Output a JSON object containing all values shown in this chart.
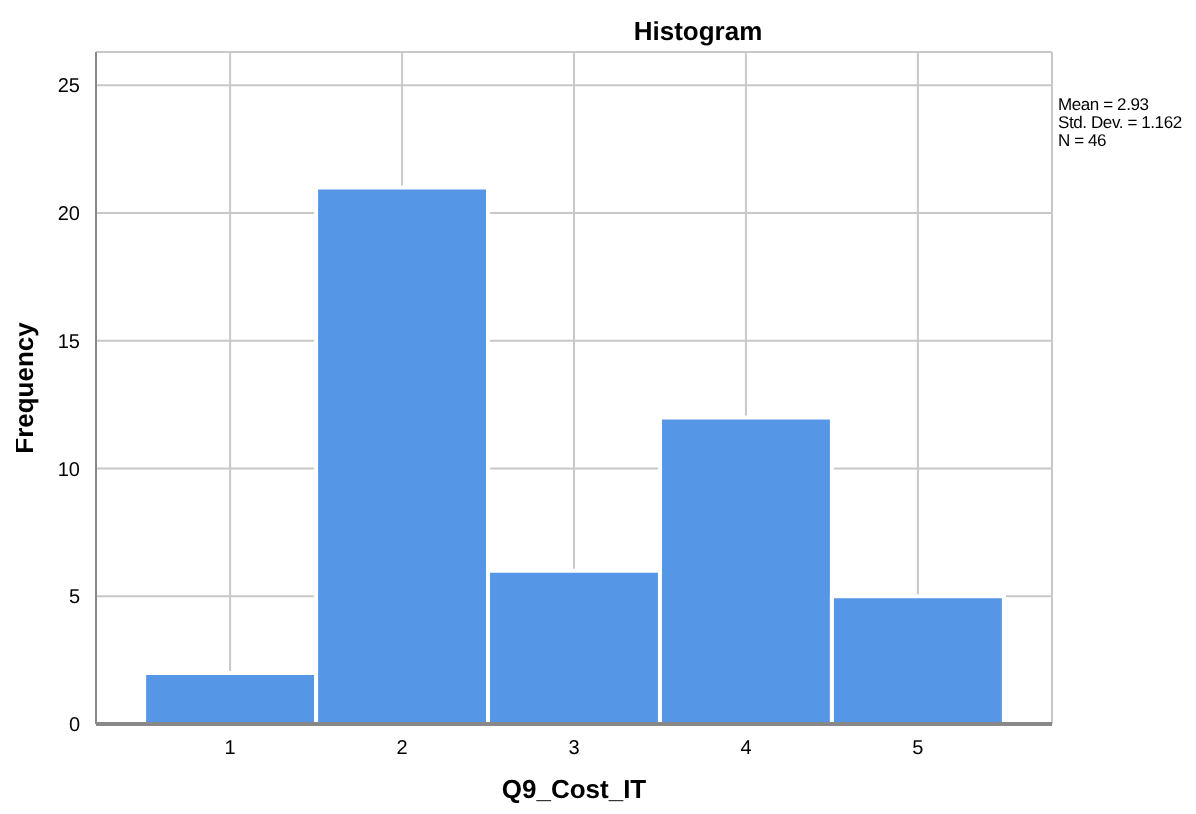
{
  "chart_data": {
    "type": "histogram",
    "title": "Histogram",
    "xlabel": "Q9_Cost_IT",
    "ylabel": "Frequency",
    "bins": [
      0.5,
      1.5,
      2.5,
      3.5,
      4.5,
      5.5
    ],
    "values": [
      2,
      21,
      6,
      12,
      5
    ],
    "color": "#5596e6",
    "xlim": [
      0.22,
      5.78
    ],
    "xticks": [
      1,
      2,
      3,
      4,
      5
    ],
    "ylim": [
      0,
      26.3
    ],
    "yticks": [
      0,
      5,
      10,
      15,
      20,
      25
    ],
    "grid": true,
    "annotations": [
      "Mean = 2.93",
      "Std. Dev. = 1.162",
      "N = 46"
    ]
  }
}
